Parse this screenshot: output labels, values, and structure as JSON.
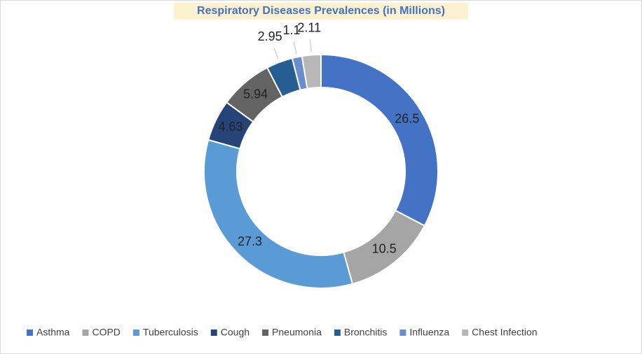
{
  "chart_data": {
    "type": "donut",
    "title": "Respiratory Diseases Prevalences (in Millions)",
    "categories": [
      "Asthma",
      "COPD",
      "Tuberculosis",
      "Cough",
      "Pneumonia",
      "Bronchitis",
      "Influenza",
      "Chest Infection"
    ],
    "values": [
      26.5,
      10.5,
      27.3,
      4.63,
      5.94,
      2.95,
      1.1,
      2.11
    ],
    "colors": [
      "#4472c4",
      "#a5a5a5",
      "#5b9bd5",
      "#264478",
      "#636363",
      "#255e91",
      "#698ed0",
      "#b7b7b7"
    ],
    "legend": "bottom"
  }
}
